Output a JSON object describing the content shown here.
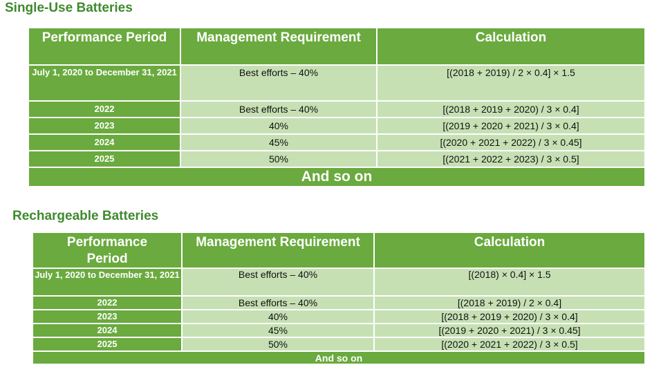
{
  "sections": [
    {
      "title": "Single-Use Batteries",
      "headers": [
        "Performance Period",
        "Management Requirement",
        "Calculation"
      ],
      "rows": [
        {
          "period": "July 1, 2020 to December 31, 2021",
          "requirement": "Best efforts – 40%",
          "calculation": "[(2018 + 2019) / 2 × 0.4] × 1.5"
        },
        {
          "period": "2022",
          "requirement": "Best efforts – 40%",
          "calculation": "[(2018 + 2019 + 2020) / 3 × 0.4]"
        },
        {
          "period": "2023",
          "requirement": "40%",
          "calculation": "[(2019 + 2020 + 2021) / 3 × 0.4]"
        },
        {
          "period": "2024",
          "requirement": "45%",
          "calculation": "[(2020 + 2021 + 2022) / 3 × 0.45]"
        },
        {
          "period": "2025",
          "requirement": "50%",
          "calculation": "[(2021 + 2022 + 2023) / 3 × 0.5]"
        }
      ],
      "footer": "And so on"
    },
    {
      "title": "Rechargeable Batteries",
      "headers": [
        "Performance Period",
        "Management Requirement",
        "Calculation"
      ],
      "rows": [
        {
          "period": "July 1, 2020 to December 31, 2021",
          "requirement": "Best efforts – 40%",
          "calculation": "[(2018) × 0.4] × 1.5"
        },
        {
          "period": "2022",
          "requirement": "Best efforts – 40%",
          "calculation": "[(2018 + 2019) / 2 × 0.4]"
        },
        {
          "period": "2023",
          "requirement": "40%",
          "calculation": "[(2018 + 2019 + 2020) / 3 × 0.4]"
        },
        {
          "period": "2024",
          "requirement": "45%",
          "calculation": "[(2019 + 2020 + 2021) / 3 × 0.45]"
        },
        {
          "period": "2025",
          "requirement": "50%",
          "calculation": "[(2020 + 2021 + 2022) / 3 × 0.5]"
        }
      ],
      "footer": "And so on"
    }
  ]
}
